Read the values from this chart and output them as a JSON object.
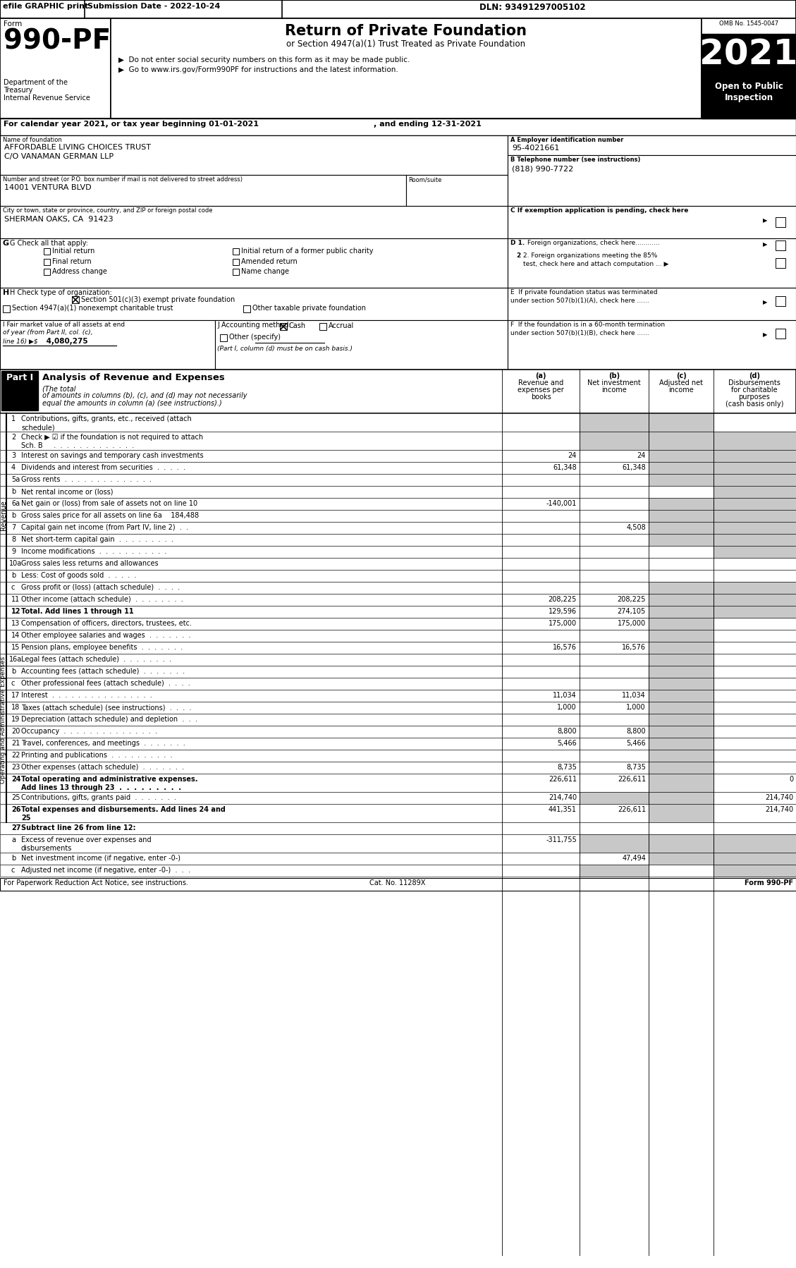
{
  "header_bar": {
    "efile": "efile GRAPHIC print",
    "submission": "Submission Date - 2022-10-24",
    "dln": "DLN: 93491297005102"
  },
  "form_number": "990-PF",
  "form_label": "Form",
  "dept1": "Department of the",
  "dept2": "Treasury",
  "dept3": "Internal Revenue Service",
  "title": "Return of Private Foundation",
  "subtitle": "or Section 4947(a)(1) Trust Treated as Private Foundation",
  "bullet1": "▶  Do not enter social security numbers on this form as it may be made public.",
  "bullet2": "▶  Go to www.irs.gov/Form990PF for instructions and the latest information.",
  "year": "2021",
  "open_to_public": "Open to Public",
  "inspection": "Inspection",
  "omb": "OMB No. 1545-0047",
  "calendar_line1": "For calendar year 2021, or tax year beginning 01-01-2021",
  "calendar_line2": ", and ending 12-31-2021",
  "name_label": "Name of foundation",
  "name_line1": "AFFORDABLE LIVING CHOICES TRUST",
  "name_line2": "C/O VANAMAN GERMAN LLP",
  "ein_label": "A Employer identification number",
  "ein": "95-4021661",
  "street_label": "Number and street (or P.O. box number if mail is not delivered to street address)",
  "street": "14001 VENTURA BLVD",
  "room_label": "Room/suite",
  "phone_label": "B Telephone number (see instructions)",
  "phone": "(818) 990-7722",
  "city_label": "City or town, state or province, country, and ZIP or foreign postal code",
  "city": "SHERMAN OAKS, CA  91423",
  "c_label": "C If exemption application is pending, check here",
  "g_label": "G Check all that apply:",
  "g_options": [
    "Initial return",
    "Initial return of a former public charity",
    "Final return",
    "Amended return",
    "Address change",
    "Name change"
  ],
  "d1_label": "D 1. Foreign organizations, check here............",
  "d2_label1": "2. Foreign organizations meeting the 85%",
  "d2_label2": "test, check here and attach computation ... ▶",
  "e_label1": "E  If private foundation status was terminated",
  "e_label2": "under section 507(b)(1)(A), check here ......",
  "h_label": "H Check type of organization:",
  "h_option1": "Section 501(c)(3) exempt private foundation",
  "h_option2": "Section 4947(a)(1) nonexempt charitable trust",
  "h_option3": "Other taxable private foundation",
  "i_label1": "I Fair market value of all assets at end",
  "i_label2": "of year (from Part II, col. (c),",
  "i_label3": "line 16) ▶$ 4,080,275",
  "j_label": "J Accounting method:",
  "j_cash": "Cash",
  "j_accrual": "Accrual",
  "j_other": "Other (specify)",
  "j_note": "(Part I, column (d) must be on cash basis.)",
  "f_label1": "F  If the foundation is in a 60-month termination",
  "f_label2": "under section 507(b)(1)(B), check here ......",
  "part1_title": "Part I",
  "part1_subtitle": "Analysis of Revenue and Expenses",
  "part1_italic": "(The total\nof amounts in columns (b), (c), and (d) may not necessarily\nequal the amounts in column (a) (see instructions).)",
  "col_a": "(a)     Revenue and\n           expenses per\n              books",
  "col_b": "(b)   Net investment\n              income",
  "col_c": "(c)   Adjusted net\n              income",
  "col_d": "(d)    Disbursements\n         for charitable\n            purposes\n        (cash basis only)",
  "rows": [
    {
      "num": "1",
      "label": "Contributions, gifts, grants, etc., received (attach\nschedule)",
      "a": "",
      "b": "",
      "c": "",
      "d": "",
      "shaded_b": true,
      "shaded_c": true,
      "shaded_d": false,
      "bold": false,
      "rh": 26
    },
    {
      "num": "2",
      "label": "Check ▶ ☑ if the foundation is not required to attach\nSch. B     .  .  .  .  .  .  .  .  .  .  .  .  .",
      "a": "",
      "b": "",
      "c": "",
      "d": "",
      "shaded_b": true,
      "shaded_c": true,
      "shaded_d": true,
      "bold": false,
      "rh": 26
    },
    {
      "num": "3",
      "label": "Interest on savings and temporary cash investments",
      "a": "24",
      "b": "24",
      "c": "",
      "d": "",
      "shaded_b": false,
      "shaded_c": true,
      "shaded_d": true,
      "bold": false,
      "rh": 17
    },
    {
      "num": "4",
      "label": "Dividends and interest from securities  .  .  .  .  .",
      "a": "61,348",
      "b": "61,348",
      "c": "",
      "d": "",
      "shaded_b": false,
      "shaded_c": true,
      "shaded_d": true,
      "bold": false,
      "rh": 17
    },
    {
      "num": "5a",
      "label": "Gross rents  .  .  .  .  .  .  .  .  .  .  .  .  .  .",
      "a": "",
      "b": "",
      "c": "",
      "d": "",
      "shaded_b": false,
      "shaded_c": true,
      "shaded_d": true,
      "bold": false,
      "rh": 17
    },
    {
      "num": "b",
      "label": "Net rental income or (loss)",
      "a": "",
      "b": "",
      "c": "",
      "d": "",
      "shaded_b": false,
      "shaded_c": false,
      "shaded_d": true,
      "bold": false,
      "rh": 17
    },
    {
      "num": "6a",
      "label": "Net gain or (loss) from sale of assets not on line 10",
      "a": "-140,001",
      "b": "",
      "c": "",
      "d": "",
      "shaded_b": false,
      "shaded_c": true,
      "shaded_d": true,
      "bold": false,
      "rh": 17
    },
    {
      "num": "b",
      "label": "Gross sales price for all assets on line 6a    184,488",
      "a": "",
      "b": "",
      "c": "",
      "d": "",
      "shaded_b": false,
      "shaded_c": true,
      "shaded_d": true,
      "bold": false,
      "rh": 17
    },
    {
      "num": "7",
      "label": "Capital gain net income (from Part IV, line 2)  .  .",
      "a": "",
      "b": "4,508",
      "c": "",
      "d": "",
      "shaded_b": false,
      "shaded_c": true,
      "shaded_d": true,
      "bold": false,
      "rh": 17
    },
    {
      "num": "8",
      "label": "Net short-term capital gain  .  .  .  .  .  .  .  .  .",
      "a": "",
      "b": "",
      "c": "",
      "d": "",
      "shaded_b": false,
      "shaded_c": true,
      "shaded_d": true,
      "bold": false,
      "rh": 17
    },
    {
      "num": "9",
      "label": "Income modifications  .  .  .  .  .  .  .  .  .  .  .",
      "a": "",
      "b": "",
      "c": "",
      "d": "",
      "shaded_b": false,
      "shaded_c": false,
      "shaded_d": true,
      "bold": false,
      "rh": 17
    },
    {
      "num": "10a",
      "label": "Gross sales less returns and allowances",
      "a": "",
      "b": "",
      "c": "",
      "d": "",
      "shaded_b": false,
      "shaded_c": false,
      "shaded_d": false,
      "bold": false,
      "rh": 17
    },
    {
      "num": "b",
      "label": "Less: Cost of goods sold  .  .  .  .  .",
      "a": "",
      "b": "",
      "c": "",
      "d": "",
      "shaded_b": false,
      "shaded_c": false,
      "shaded_d": false,
      "bold": false,
      "rh": 17
    },
    {
      "num": "c",
      "label": "Gross profit or (loss) (attach schedule)  .  .  .  .",
      "a": "",
      "b": "",
      "c": "",
      "d": "",
      "shaded_b": false,
      "shaded_c": true,
      "shaded_d": true,
      "bold": false,
      "rh": 17
    },
    {
      "num": "11",
      "label": "Other income (attach schedule)  .  .  .  .  .  .  .  .",
      "a": "208,225",
      "b": "208,225",
      "c": "",
      "d": "",
      "shaded_b": false,
      "shaded_c": true,
      "shaded_d": true,
      "bold": false,
      "rh": 17
    },
    {
      "num": "12",
      "label": "Total. Add lines 1 through 11",
      "a": "129,596",
      "b": "274,105",
      "c": "",
      "d": "",
      "shaded_b": false,
      "shaded_c": true,
      "shaded_d": true,
      "bold": true,
      "rh": 17
    },
    {
      "num": "13",
      "label": "Compensation of officers, directors, trustees, etc.",
      "a": "175,000",
      "b": "175,000",
      "c": "",
      "d": "",
      "shaded_b": false,
      "shaded_c": true,
      "shaded_d": false,
      "bold": false,
      "rh": 17
    },
    {
      "num": "14",
      "label": "Other employee salaries and wages  .  .  .  .  .  .  .",
      "a": "",
      "b": "",
      "c": "",
      "d": "",
      "shaded_b": false,
      "shaded_c": true,
      "shaded_d": false,
      "bold": false,
      "rh": 17
    },
    {
      "num": "15",
      "label": "Pension plans, employee benefits  .  .  .  .  .  .  .",
      "a": "16,576",
      "b": "16,576",
      "c": "",
      "d": "",
      "shaded_b": false,
      "shaded_c": true,
      "shaded_d": false,
      "bold": false,
      "rh": 17
    },
    {
      "num": "16a",
      "label": "Legal fees (attach schedule)  .  .  .  .  .  .  .  .",
      "a": "",
      "b": "",
      "c": "",
      "d": "",
      "shaded_b": false,
      "shaded_c": true,
      "shaded_d": false,
      "bold": false,
      "rh": 17
    },
    {
      "num": "b",
      "label": "Accounting fees (attach schedule)  .  .  .  .  .  .  .",
      "a": "",
      "b": "",
      "c": "",
      "d": "",
      "shaded_b": false,
      "shaded_c": true,
      "shaded_d": false,
      "bold": false,
      "rh": 17
    },
    {
      "num": "c",
      "label": "Other professional fees (attach schedule)  .  .  .  .",
      "a": "",
      "b": "",
      "c": "",
      "d": "",
      "shaded_b": false,
      "shaded_c": true,
      "shaded_d": false,
      "bold": false,
      "rh": 17
    },
    {
      "num": "17",
      "label": "Interest  .  .  .  .  .  .  .  .  .  .  .  .  .  .  .  .",
      "a": "11,034",
      "b": "11,034",
      "c": "",
      "d": "",
      "shaded_b": false,
      "shaded_c": true,
      "shaded_d": false,
      "bold": false,
      "rh": 17
    },
    {
      "num": "18",
      "label": "Taxes (attach schedule) (see instructions)  .  .  .  .",
      "a": "1,000",
      "b": "1,000",
      "c": "",
      "d": "",
      "shaded_b": false,
      "shaded_c": true,
      "shaded_d": false,
      "bold": false,
      "rh": 17
    },
    {
      "num": "19",
      "label": "Depreciation (attach schedule) and depletion  .  .  .",
      "a": "",
      "b": "",
      "c": "",
      "d": "",
      "shaded_b": false,
      "shaded_c": true,
      "shaded_d": false,
      "bold": false,
      "rh": 17
    },
    {
      "num": "20",
      "label": "Occupancy  .  .  .  .  .  .  .  .  .  .  .  .  .  .  .",
      "a": "8,800",
      "b": "8,800",
      "c": "",
      "d": "",
      "shaded_b": false,
      "shaded_c": true,
      "shaded_d": false,
      "bold": false,
      "rh": 17
    },
    {
      "num": "21",
      "label": "Travel, conferences, and meetings  .  .  .  .  .  .  .",
      "a": "5,466",
      "b": "5,466",
      "c": "",
      "d": "",
      "shaded_b": false,
      "shaded_c": true,
      "shaded_d": false,
      "bold": false,
      "rh": 17
    },
    {
      "num": "22",
      "label": "Printing and publications  .  .  .  .  .  .  .  .  .  .",
      "a": "",
      "b": "",
      "c": "",
      "d": "",
      "shaded_b": false,
      "shaded_c": true,
      "shaded_d": false,
      "bold": false,
      "rh": 17
    },
    {
      "num": "23",
      "label": "Other expenses (attach schedule)  .  .  .  .  .  .  .",
      "a": "8,735",
      "b": "8,735",
      "c": "",
      "d": "",
      "shaded_b": false,
      "shaded_c": true,
      "shaded_d": false,
      "bold": false,
      "rh": 17
    },
    {
      "num": "24",
      "label": "Total operating and administrative expenses.\nAdd lines 13 through 23  .  .  .  .  .  .  .  .  .",
      "a": "226,611",
      "b": "226,611",
      "c": "",
      "d": "0",
      "shaded_b": false,
      "shaded_c": true,
      "shaded_d": false,
      "bold": true,
      "rh": 26
    },
    {
      "num": "25",
      "label": "Contributions, gifts, grants paid  .  .  .  .  .  .  .",
      "a": "214,740",
      "b": "",
      "c": "",
      "d": "214,740",
      "shaded_b": true,
      "shaded_c": true,
      "shaded_d": false,
      "bold": false,
      "rh": 17
    },
    {
      "num": "26",
      "label": "Total expenses and disbursements. Add lines 24 and\n25",
      "a": "441,351",
      "b": "226,611",
      "c": "",
      "d": "214,740",
      "shaded_b": false,
      "shaded_c": true,
      "shaded_d": false,
      "bold": true,
      "rh": 26
    },
    {
      "num": "27",
      "label": "Subtract line 26 from line 12:",
      "a": "",
      "b": "",
      "c": "",
      "d": "",
      "shaded_b": false,
      "shaded_c": false,
      "shaded_d": false,
      "bold": true,
      "rh": 17
    },
    {
      "num": "a",
      "label": "Excess of revenue over expenses and\ndisbursements",
      "a": "-311,755",
      "b": "",
      "c": "",
      "d": "",
      "shaded_b": true,
      "shaded_c": true,
      "shaded_d": true,
      "bold": false,
      "rh": 26
    },
    {
      "num": "b",
      "label": "Net investment income (if negative, enter -0-)",
      "a": "",
      "b": "47,494",
      "c": "",
      "d": "",
      "shaded_b": false,
      "shaded_c": true,
      "shaded_d": true,
      "bold": false,
      "rh": 17
    },
    {
      "num": "c",
      "label": "Adjusted net income (if negative, enter -0-)  .  .  .",
      "a": "",
      "b": "",
      "c": "",
      "d": "",
      "shaded_b": true,
      "shaded_c": false,
      "shaded_d": true,
      "bold": false,
      "rh": 17
    }
  ],
  "side_label_revenue": "Revenue",
  "side_label_expenses": "Operating and Administrative Expenses",
  "footer_left": "For Paperwork Reduction Act Notice, see instructions.",
  "footer_cat": "Cat. No. 11289X",
  "footer_right": "Form 990-PF"
}
